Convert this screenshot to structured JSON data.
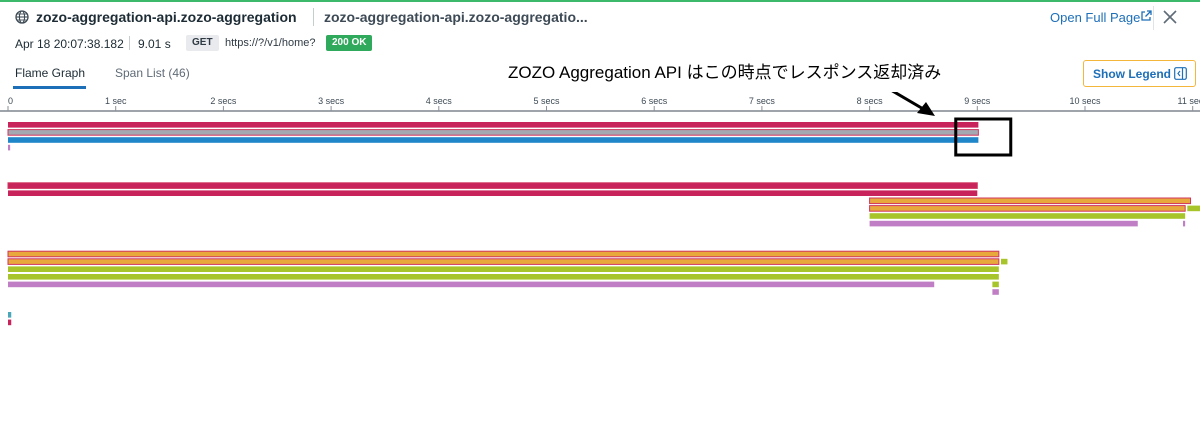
{
  "header": {
    "title": "zozo-aggregation-api.zozo-aggregation",
    "subtitle": "zozo-aggregation-api.zozo-aggregatio...",
    "open_full_page": "Open Full Page"
  },
  "meta": {
    "date": "Apr 18 20:07:38.182",
    "duration": "9.01 s",
    "method": "GET",
    "url": "https://?/v1/home?",
    "status": "200 OK"
  },
  "tabs": {
    "flame_graph": "Flame Graph",
    "span_list": "Span List (46)"
  },
  "annotation": "ZOZO Aggregation API はこの時点でレスポンス返却済み",
  "legend_button": "Show Legend",
  "colors": {
    "crimson": "#c8235a",
    "blue": "#1f86c9",
    "gray": "#8a8f98",
    "orange": "#e8a83c",
    "lime": "#a7c42b",
    "purple": "#c07fc4",
    "teal": "#4aa7b8",
    "accent": "#1d6fb8",
    "success": "#2fa95b"
  },
  "flame_data": {
    "unit": "secs",
    "x_range": [
      0,
      11
    ],
    "ticks": [
      {
        "v": 0,
        "label": "0"
      },
      {
        "v": 1,
        "label": "1 sec"
      },
      {
        "v": 2,
        "label": "2 secs"
      },
      {
        "v": 3,
        "label": "3 secs"
      },
      {
        "v": 4,
        "label": "4 secs"
      },
      {
        "v": 5,
        "label": "5 secs"
      },
      {
        "v": 6,
        "label": "6 secs"
      },
      {
        "v": 7,
        "label": "7 secs"
      },
      {
        "v": 8,
        "label": "8 secs"
      },
      {
        "v": 9,
        "label": "9 secs"
      },
      {
        "v": 10,
        "label": "10 secs"
      },
      {
        "v": 11,
        "label": "11 secs"
      }
    ],
    "spans": [
      {
        "row": 0,
        "start": 0,
        "end": 9.01,
        "color": "crimson"
      },
      {
        "row": 1,
        "start": 0,
        "end": 9.01,
        "color": "gray",
        "outline": true
      },
      {
        "row": 2,
        "start": 0,
        "end": 9.01,
        "color": "blue"
      },
      {
        "row": 3,
        "start": 0,
        "end": 0.02,
        "color": "purple"
      },
      {
        "row": 8,
        "start": 0,
        "end": 9.0,
        "color": "crimson",
        "outline": true
      },
      {
        "row": 9,
        "start": 0,
        "end": 9.0,
        "color": "crimson"
      },
      {
        "row": 10,
        "start": 8.0,
        "end": 10.98,
        "color": "orange",
        "outline": true
      },
      {
        "row": 11,
        "start": 8.0,
        "end": 10.93,
        "color": "orange",
        "outline": true
      },
      {
        "row": 11,
        "start": 10.95,
        "end": 11.07,
        "color": "lime"
      },
      {
        "row": 12,
        "start": 8.0,
        "end": 10.93,
        "color": "lime"
      },
      {
        "row": 13,
        "start": 8.0,
        "end": 10.49,
        "color": "purple"
      },
      {
        "row": 13,
        "start": 10.91,
        "end": 10.93,
        "color": "purple"
      },
      {
        "row": 17,
        "start": 0.0,
        "end": 9.2,
        "color": "orange",
        "outline": true
      },
      {
        "row": 18,
        "start": 0.0,
        "end": 9.2,
        "color": "orange",
        "outline": true
      },
      {
        "row": 18,
        "start": 9.22,
        "end": 9.28,
        "color": "lime"
      },
      {
        "row": 19,
        "start": 0.0,
        "end": 9.2,
        "color": "lime"
      },
      {
        "row": 20,
        "start": 0.0,
        "end": 9.2,
        "color": "lime"
      },
      {
        "row": 21,
        "start": 0.0,
        "end": 8.6,
        "color": "purple"
      },
      {
        "row": 21,
        "start": 9.14,
        "end": 9.2,
        "color": "lime"
      },
      {
        "row": 22,
        "start": 9.14,
        "end": 9.2,
        "color": "purple"
      },
      {
        "row": 25,
        "start": 0.0,
        "end": 0.03,
        "color": "teal"
      },
      {
        "row": 26,
        "start": 0.0,
        "end": 0.03,
        "color": "crimson"
      }
    ]
  }
}
